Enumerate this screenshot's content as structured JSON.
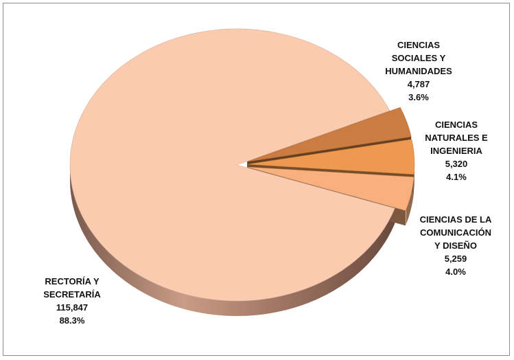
{
  "chart_data": {
    "type": "pie",
    "three_d": true,
    "exploded_slices": [
      1,
      2,
      3
    ],
    "slices": [
      {
        "name_lines": [
          "RECTORÍA Y",
          "SECRETARÍA"
        ],
        "value": "115,847",
        "percent_label": "88.3%",
        "percent": 88.3,
        "color": "#FBCBB0"
      },
      {
        "name_lines": [
          "CIENCIAS",
          "SOCIALES Y",
          "HUMANIDADES"
        ],
        "value": "4,787",
        "percent_label": "3.6%",
        "percent": 3.6,
        "color": "#CB7C40"
      },
      {
        "name_lines": [
          "CIENCIAS",
          "NATURALES E",
          "INGENIERIA"
        ],
        "value": "5,320",
        "percent_label": "4.1%",
        "percent": 4.1,
        "color": "#ED9A50"
      },
      {
        "name_lines": [
          "CIENCIAS DE LA",
          "COMUNICACIÓN",
          "Y DISEÑO"
        ],
        "value": "5,259",
        "percent_label": "4.0%",
        "percent": 4.0,
        "color": "#F7B07E"
      }
    ]
  }
}
